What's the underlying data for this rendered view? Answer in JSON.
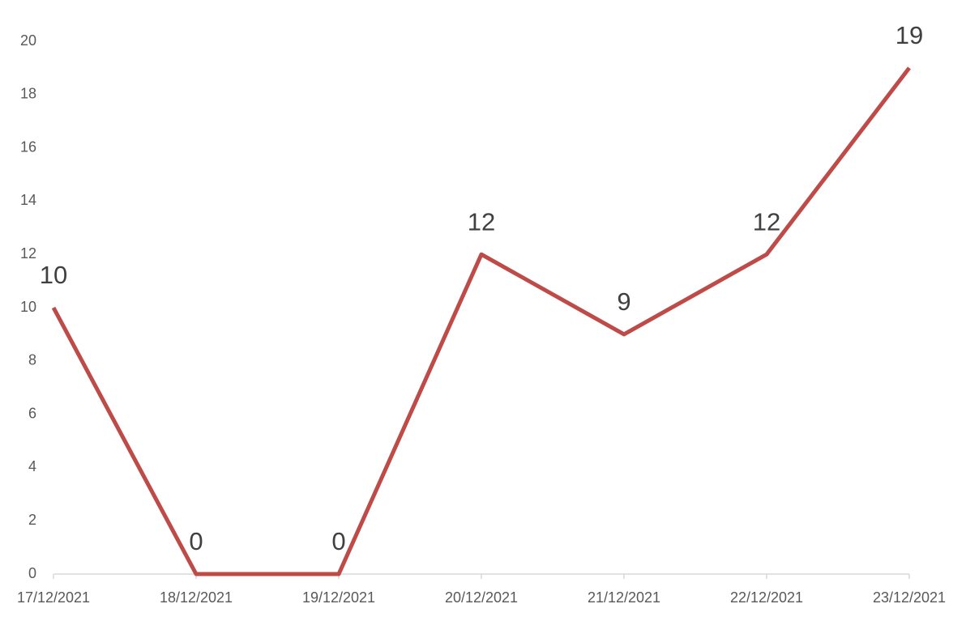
{
  "chart_data": {
    "type": "line",
    "categories": [
      "17/12/2021",
      "18/12/2021",
      "19/12/2021",
      "20/12/2021",
      "21/12/2021",
      "22/12/2021",
      "23/12/2021"
    ],
    "values": [
      10,
      0,
      0,
      12,
      9,
      12,
      19
    ],
    "color": "#be4b48",
    "ylim": [
      0,
      20
    ],
    "yticks": [
      0,
      2,
      4,
      6,
      8,
      10,
      12,
      14,
      16,
      18,
      20
    ],
    "grid": false,
    "data_labels": true
  }
}
